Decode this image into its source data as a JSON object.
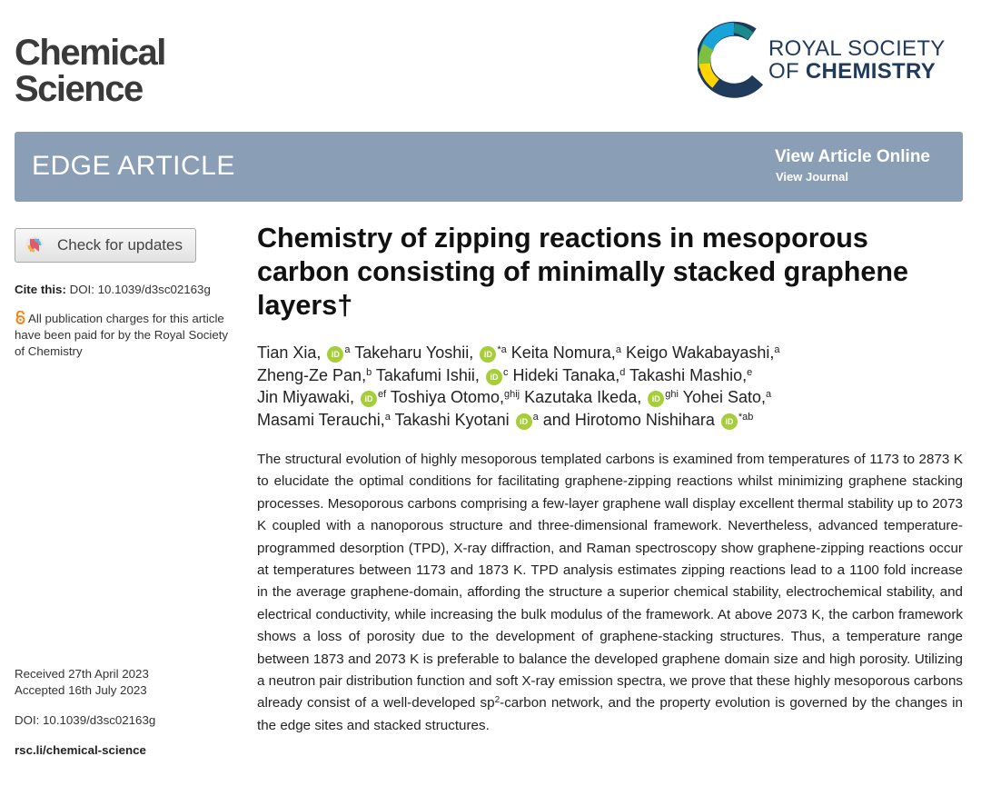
{
  "journal": {
    "name_line1": "Chemical",
    "name_line2": "Science"
  },
  "publisher": {
    "line1": "ROYAL SOCIETY",
    "line2_prefix": "OF ",
    "line2_bold": "CHEMISTRY",
    "colors": {
      "navy": "#1f3a5a",
      "cyan": "#1aa3d8",
      "green": "#7fbf3f",
      "yellow": "#ffd400",
      "teal": "#1b8a8a"
    }
  },
  "banner": {
    "type": "EDGE ARTICLE",
    "view_online": "View Article Online",
    "view_journal": "View Journal",
    "color": "#8a9fb5"
  },
  "sidebar": {
    "check_updates": "Check for updates",
    "cite_label": "Cite this:",
    "cite_doi": "DOI: 10.1039/d3sc02163g",
    "oa_line1": "All publication charges for this article",
    "oa_line2": "have been paid for by the Royal Society",
    "oa_line3": "of Chemistry",
    "received": "Received 27th April 2023",
    "accepted": "Accepted 16th July 2023",
    "doi": "DOI: 10.1039/d3sc02163g",
    "url": "rsc.li/chemical-science"
  },
  "title": {
    "line1": "Chemistry of zipping reactions in mesoporous",
    "line2": "carbon consisting of minimally stacked graphene",
    "line3": "layers†"
  },
  "orcid_icon": "iD",
  "authors": [
    {
      "name": "Tian Xia,",
      "orcid": true,
      "aff": "a",
      "line": 1
    },
    {
      "name": "Takeharu Yoshii,",
      "orcid": true,
      "aff": "*a",
      "line": 1
    },
    {
      "name": "Keita Nomura,",
      "orcid": false,
      "aff": "a",
      "line": 1
    },
    {
      "name": "Keigo Wakabayashi,",
      "orcid": false,
      "aff": "a",
      "line": 1
    },
    {
      "name": "Zheng-Ze Pan,",
      "orcid": false,
      "aff": "b",
      "line": 2
    },
    {
      "name": "Takafumi Ishii,",
      "orcid": true,
      "aff": "c",
      "line": 2
    },
    {
      "name": "Hideki Tanaka,",
      "orcid": false,
      "aff": "d",
      "line": 2
    },
    {
      "name": "Takashi Mashio,",
      "orcid": false,
      "aff": "e",
      "line": 2
    },
    {
      "name": "Jin Miyawaki,",
      "orcid": true,
      "aff": "ef",
      "line": 3
    },
    {
      "name": "Toshiya Otomo,",
      "orcid": false,
      "aff": "ghij",
      "line": 3
    },
    {
      "name": "Kazutaka Ikeda,",
      "orcid": true,
      "aff": "ghi",
      "line": 3
    },
    {
      "name": "Yohei Sato,",
      "orcid": false,
      "aff": "a",
      "line": 3
    },
    {
      "name": "Masami Terauchi,",
      "orcid": false,
      "aff": "a",
      "line": 4
    },
    {
      "name": "Takashi Kyotani",
      "orcid": true,
      "aff": "a",
      "line": 4
    },
    {
      "name": "and Hirotomo Nishihara",
      "orcid": true,
      "aff": "*ab",
      "line": 4
    }
  ],
  "abstract": {
    "part1": "The structural evolution of highly mesoporous templated carbons is examined from temperatures of 1173 to 2873 K to elucidate the optimal conditions for facilitating graphene-zipping reactions whilst minimizing graphene stacking processes. Mesoporous carbons comprising a few-layer graphene wall display excellent thermal stability up to 2073 K coupled with a nanoporous structure and three-dimensional framework. Nevertheless, advanced temperature-programmed desorption (TPD), X-ray diffraction, and Raman spectroscopy show graphene-zipping reactions occur at temperatures between 1173 and 1873 K. TPD analysis estimates zipping reactions lead to a 1100 fold increase in the average graphene-domain, affording the structure a superior chemical stability, electrochemical stability, and electrical conductivity, while increasing the bulk modulus of the framework. At above 2073 K, the carbon framework shows a loss of porosity due to the development of graphene-stacking structures. Thus, a temperature range between 1873 and 2073 K is preferable to balance the developed graphene domain size and high porosity. Utilizing a neutron pair distribution function and soft X-ray emission spectra, we prove that these highly mesoporous carbons already consist of a well-developed sp",
    "sup": "2",
    "part2": "-carbon network, and the property evolution is governed by the changes in the edge sites and stacked structures."
  }
}
